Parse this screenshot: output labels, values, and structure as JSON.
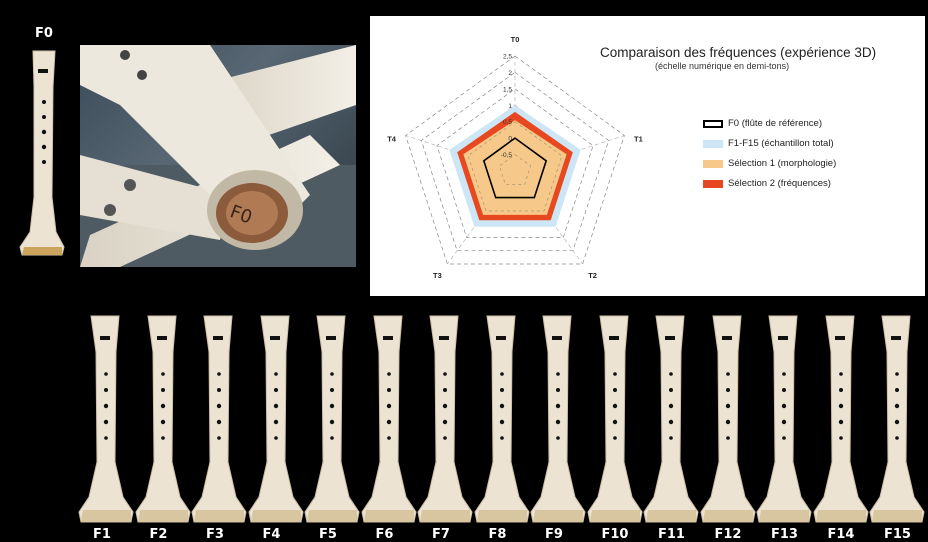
{
  "reference_label": "F0",
  "photo_label": "F0",
  "chart_data": {
    "type": "radar",
    "title": "Comparaison des fréquences (expérience 3D)",
    "subtitle": "(échelle numérique en demi-tons)",
    "axes": [
      "T0",
      "T1",
      "T2",
      "T3",
      "T4"
    ],
    "rlim": [
      -1,
      2.5
    ],
    "ticks": [
      2.5,
      2,
      1.5,
      1,
      0.5,
      0,
      -0.5
    ],
    "tick_labels": [
      "2,5",
      "2",
      "1,5",
      "1",
      "0,5",
      "0",
      "-0,5"
    ],
    "grid": true,
    "legend_position": "right",
    "series": [
      {
        "name": "F1-F15 (échantillon total)",
        "kind": "band",
        "outer": [
          1.0,
          1.1,
          1.1,
          1.1,
          1.1
        ],
        "color": "#cde6f6"
      },
      {
        "name": "Sélection 2 (fréquences)",
        "kind": "band",
        "outer": [
          0.8,
          0.85,
          0.85,
          0.85,
          0.85
        ],
        "color": "#e8481f"
      },
      {
        "name": "Sélection 1 (morphologie)",
        "kind": "band",
        "outer": [
          0.55,
          0.65,
          0.65,
          0.65,
          0.65
        ],
        "color": "#f6c98a"
      },
      {
        "name": "F0 (flûte de référence)",
        "kind": "line",
        "values": [
          0,
          0,
          0,
          0,
          0
        ],
        "color": "#000000"
      }
    ]
  },
  "legend_order": [
    3,
    0,
    2,
    1
  ],
  "flutes": [
    {
      "label": "F1"
    },
    {
      "label": "F2"
    },
    {
      "label": "F3"
    },
    {
      "label": "F4"
    },
    {
      "label": "F5"
    },
    {
      "label": "F6"
    },
    {
      "label": "F7"
    },
    {
      "label": "F8"
    },
    {
      "label": "F9"
    },
    {
      "label": "F10"
    },
    {
      "label": "F11"
    },
    {
      "label": "F12"
    },
    {
      "label": "F13"
    },
    {
      "label": "F14"
    },
    {
      "label": "F15"
    }
  ]
}
